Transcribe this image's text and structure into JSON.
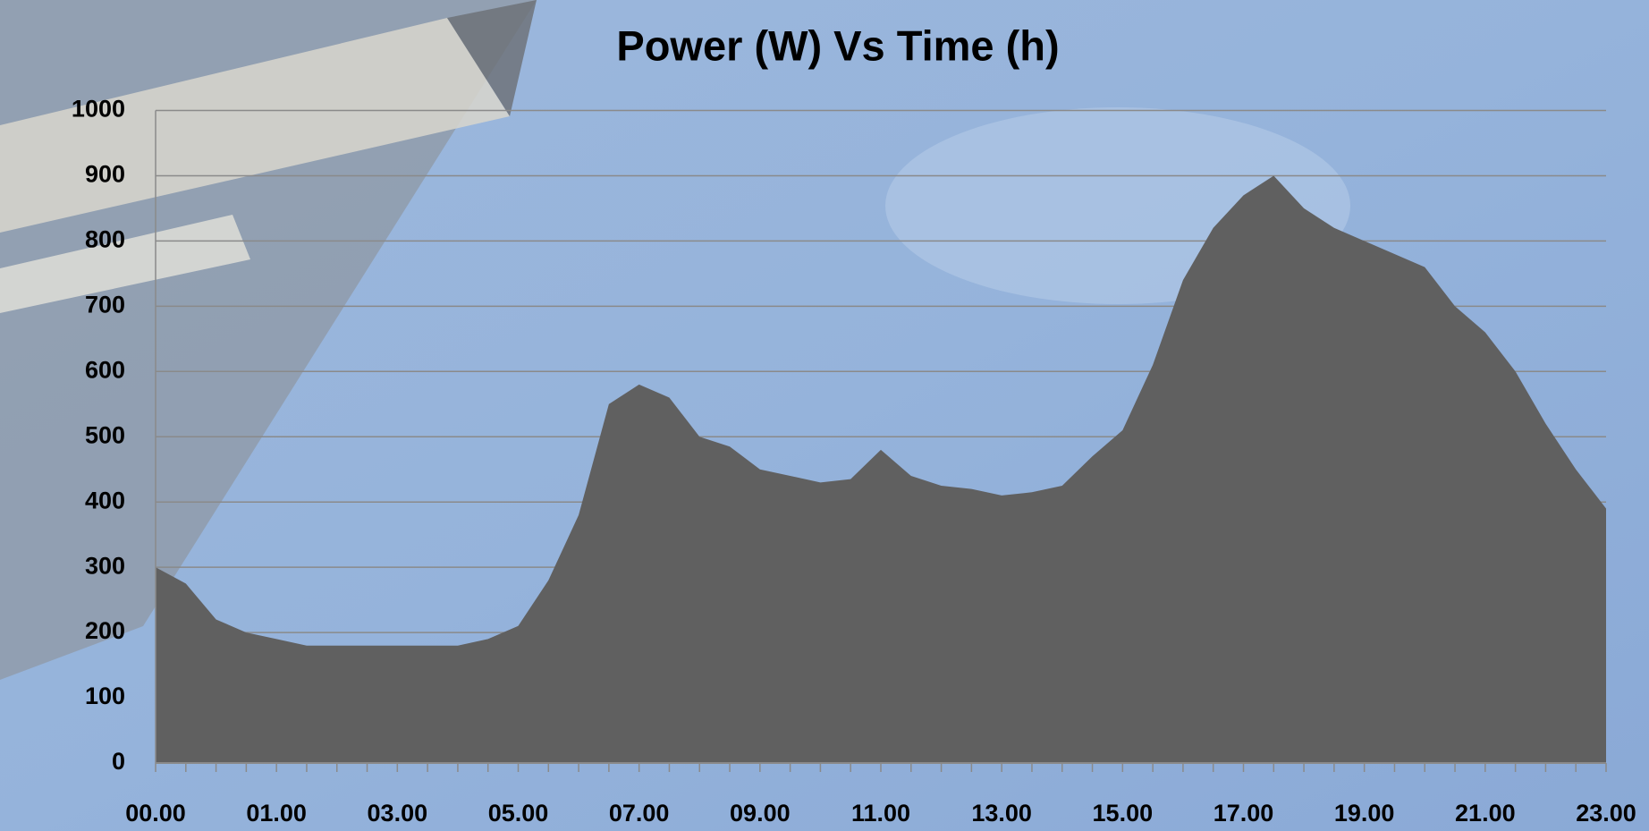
{
  "chart_data": {
    "type": "area",
    "title": "Power (W) Vs Time (h)",
    "categories": [
      "00.00",
      null,
      null,
      null,
      "01.00",
      null,
      null,
      null,
      "03.00",
      null,
      null,
      null,
      "05.00",
      null,
      null,
      null,
      "07.00",
      null,
      null,
      null,
      "09.00",
      null,
      null,
      null,
      "11.00",
      null,
      null,
      null,
      "13.00",
      null,
      null,
      null,
      "15.00",
      null,
      null,
      null,
      "17.00",
      null,
      null,
      null,
      "19.00",
      null,
      null,
      null,
      "21.00",
      null,
      null,
      null,
      "23.00"
    ],
    "values": [
      300,
      275,
      220,
      200,
      190,
      180,
      180,
      180,
      180,
      180,
      180,
      190,
      210,
      280,
      380,
      550,
      580,
      560,
      500,
      485,
      450,
      440,
      430,
      435,
      480,
      440,
      425,
      420,
      410,
      415,
      425,
      470,
      510,
      610,
      740,
      820,
      870,
      900,
      850,
      820,
      800,
      780,
      760,
      700,
      660,
      600,
      520,
      450,
      390
    ],
    "color": "#606060",
    "ylim": [
      0,
      1000
    ],
    "yticks": [
      0,
      100,
      200,
      300,
      400,
      500,
      600,
      700,
      800,
      900,
      1000
    ],
    "grid": true
  }
}
